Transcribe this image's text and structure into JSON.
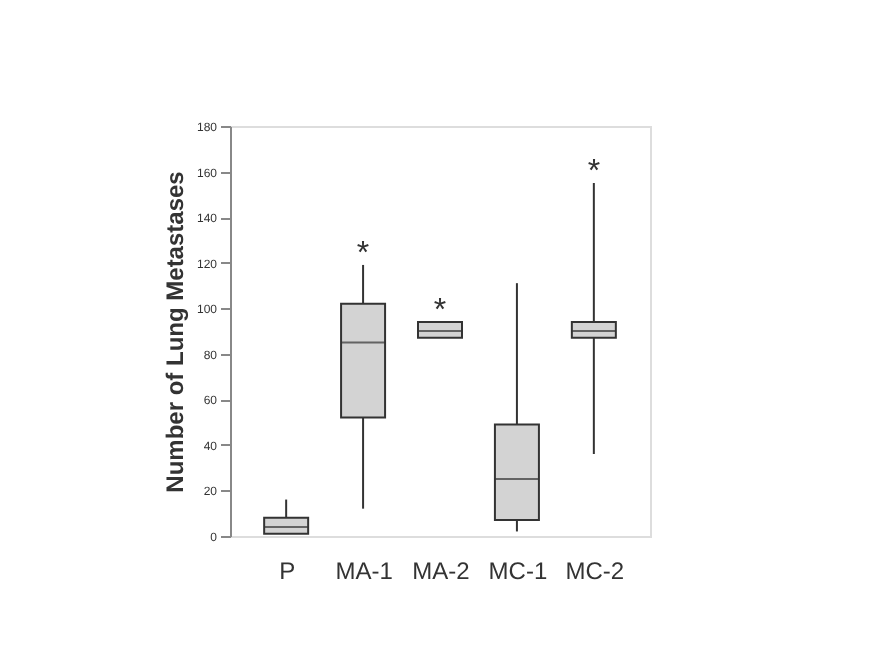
{
  "chart_data": {
    "type": "box",
    "ylabel": "Number of Lung Metastases",
    "categories": [
      "P",
      "MA-1",
      "MA-2",
      "MC-1",
      "MC-2"
    ],
    "boxes": [
      {
        "low": 1,
        "q1": 1,
        "median": 4,
        "q3": 8,
        "high": 16
      },
      {
        "low": 12,
        "q1": 52,
        "median": 85,
        "q3": 102,
        "high": 119
      },
      {
        "low": 87,
        "q1": 87,
        "median": 90,
        "q3": 94,
        "high": 94
      },
      {
        "low": 2,
        "q1": 7,
        "median": 25,
        "q3": 49,
        "high": 111
      },
      {
        "low": 36,
        "q1": 87,
        "median": 90,
        "q3": 94,
        "high": 155
      }
    ],
    "color": "#d3d3d3",
    "ylim": [
      0,
      180
    ],
    "yticks": [
      0,
      20,
      40,
      60,
      80,
      100,
      120,
      140,
      160,
      180
    ],
    "grid": false,
    "annotations": [
      "*",
      "*",
      "*"
    ]
  }
}
